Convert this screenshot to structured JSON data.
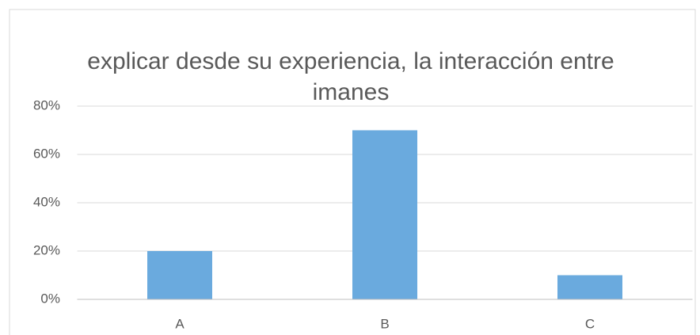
{
  "chart_data": {
    "type": "bar",
    "title": "explicar desde su experiencia, la interacción entre imanes",
    "categories": [
      "A",
      "B",
      "C"
    ],
    "values": [
      20,
      70,
      10
    ],
    "color": "#6aaade",
    "ylim": [
      0,
      80
    ],
    "yticks": [
      {
        "value": 0,
        "label": "0%"
      },
      {
        "value": 20,
        "label": "20%"
      },
      {
        "value": 40,
        "label": "40%"
      },
      {
        "value": 60,
        "label": "60%"
      },
      {
        "value": 80,
        "label": "80%"
      }
    ],
    "grid": true
  }
}
